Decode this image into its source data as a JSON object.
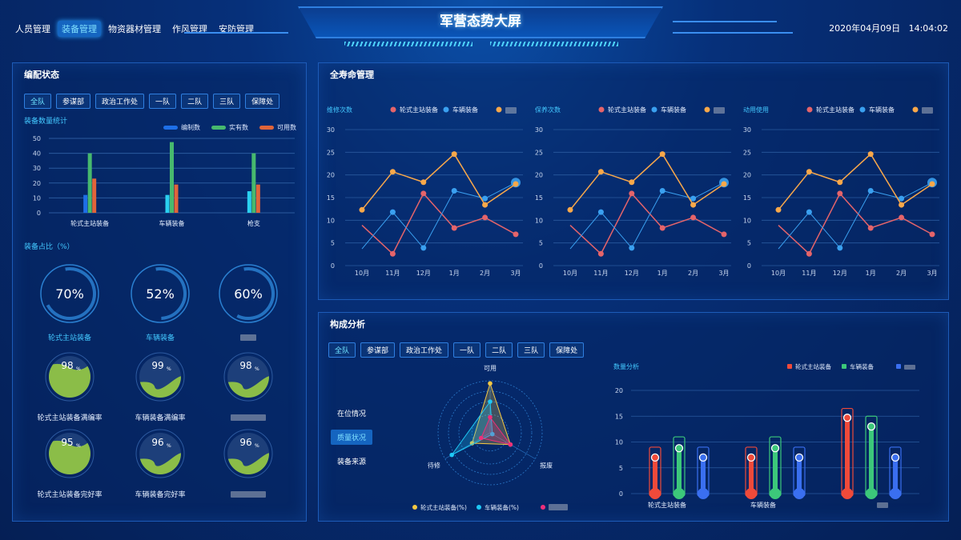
{
  "header": {
    "title": "军营态势大屏",
    "nav": [
      {
        "label": "人员管理"
      },
      {
        "label": "装备管理",
        "active": true
      },
      {
        "label": "物资器材管理"
      },
      {
        "label": "作风管理"
      },
      {
        "label": "安防管理"
      }
    ],
    "date": "2020年04月09日",
    "time": "14:04:02"
  },
  "left": {
    "title": "编配状态",
    "tabs": [
      "全队",
      "参谋部",
      "政治工作处",
      "一队",
      "二队",
      "三队",
      "保障处"
    ],
    "bar_title": "装备数量统计",
    "ratio_title": "装备占比（%）",
    "rings": [
      {
        "value": 70,
        "text": "70%",
        "label": "轮式主站装备"
      },
      {
        "value": 52,
        "text": "52%",
        "label": "车辆装备"
      },
      {
        "value": 60,
        "text": "60%",
        "label": ""
      }
    ],
    "gauges": [
      {
        "value": 98,
        "label": "轮式主站装备满编率"
      },
      {
        "value": 99,
        "label": "车辆装备满编率"
      },
      {
        "value": 98,
        "label": ""
      },
      {
        "value": 95,
        "label": "轮式主站装备完好率"
      },
      {
        "value": 96,
        "label": "车辆装备完好率"
      },
      {
        "value": 96,
        "label": ""
      }
    ],
    "gauge_unit": "%"
  },
  "lifecycle": {
    "title": "全寿命管理"
  },
  "composition": {
    "title": "构成分析",
    "tabs": [
      "全队",
      "参谋部",
      "政治工作处",
      "一队",
      "二队",
      "三队",
      "保障处"
    ],
    "menu": [
      "在位情况",
      "质量状况",
      "装备来源"
    ],
    "menu_active": 1
  },
  "colors": {
    "accent": "#43c8ff",
    "red": "#e5646a",
    "blue": "#3aa0f0",
    "orange": "#f9a84a",
    "green": "#47b96e",
    "bar_blue": "#1e6fe8",
    "bar_orange": "#e0653a",
    "gauge": "#8bbd48"
  },
  "chart_data": [
    {
      "type": "bar",
      "title": "装备数量统计",
      "categories": [
        "轮式主站装备",
        "车辆装备",
        "枪支"
      ],
      "ylim": [
        0,
        50
      ],
      "yticks": [
        0,
        10,
        20,
        30,
        40,
        50
      ],
      "legend": "top-right",
      "series": [
        {
          "name": "编制数",
          "values": [
            12,
            12,
            14.5
          ],
          "color": "#1e6fe8"
        },
        {
          "name": "实有数",
          "values": [
            40,
            47.5,
            40
          ],
          "color": "#47b96e"
        },
        {
          "name": "可用数",
          "values": [
            23,
            19,
            19
          ],
          "color": "#e0653a"
        }
      ]
    },
    {
      "type": "line",
      "title": "维修次数",
      "categories": [
        "10月",
        "11月",
        "12月",
        "1月",
        "2月",
        "3月"
      ],
      "ylim": [
        0,
        30
      ],
      "yticks": [
        0,
        5,
        10,
        15,
        20,
        25,
        30
      ],
      "legend": "top-right",
      "series": [
        {
          "name": "轮式主站装备",
          "values": [
            8.9,
            2.6,
            15.9,
            8.3,
            10.6,
            6.9
          ],
          "color": "#e5646a"
        },
        {
          "name": "车辆装备",
          "values": [
            3.7,
            11.8,
            3.9,
            16.5,
            14.8,
            18.3
          ],
          "color": "#3aa0f0"
        },
        {
          "name": "",
          "values": [
            12.3,
            20.7,
            18.4,
            24.6,
            13.4,
            18
          ],
          "color": "#f9a84a"
        }
      ]
    },
    {
      "type": "line",
      "title": "保养次数",
      "categories": [
        "10月",
        "11月",
        "12月",
        "1月",
        "2月",
        "3月"
      ],
      "ylim": [
        0,
        30
      ],
      "yticks": [
        0,
        5,
        10,
        15,
        20,
        25,
        30
      ],
      "legend": "top-right",
      "series": [
        {
          "name": "轮式主站装备",
          "values": [
            8.9,
            2.6,
            15.9,
            8.3,
            10.6,
            6.9
          ],
          "color": "#e5646a"
        },
        {
          "name": "车辆装备",
          "values": [
            3.7,
            11.8,
            3.9,
            16.5,
            14.8,
            18.3
          ],
          "color": "#3aa0f0"
        },
        {
          "name": "",
          "values": [
            12.3,
            20.7,
            18.4,
            24.6,
            13.4,
            18
          ],
          "color": "#f9a84a"
        }
      ]
    },
    {
      "type": "line",
      "title": "动用使用",
      "categories": [
        "10月",
        "11月",
        "12月",
        "1月",
        "2月",
        "3月"
      ],
      "ylim": [
        0,
        30
      ],
      "yticks": [
        0,
        5,
        10,
        15,
        20,
        25,
        30
      ],
      "legend": "top-right",
      "series": [
        {
          "name": "轮式主站装备",
          "values": [
            8.9,
            2.6,
            15.9,
            8.3,
            10.6,
            6.9
          ],
          "color": "#e5646a"
        },
        {
          "name": "车辆装备",
          "values": [
            3.7,
            11.8,
            3.9,
            16.5,
            14.8,
            18.3
          ],
          "color": "#3aa0f0"
        },
        {
          "name": "",
          "values": [
            12.3,
            20.7,
            18.4,
            24.6,
            13.4,
            18
          ],
          "color": "#f9a84a"
        }
      ]
    },
    {
      "type": "radar",
      "indicators": [
        "可用",
        "报废",
        "待修"
      ],
      "max": 100,
      "legend": "bottom",
      "series": [
        {
          "name": "轮式主站装备(%)",
          "values": [
            95,
            45,
            40
          ],
          "color": "#f5c842"
        },
        {
          "name": "车辆装备(%)",
          "values": [
            60,
            5,
            85
          ],
          "color": "#1ec8f5"
        },
        {
          "name": "",
          "values": [
            30,
            45,
            20
          ],
          "color": "#ee2f7a"
        }
      ]
    },
    {
      "type": "bar",
      "title": "数量分析",
      "categories": [
        "轮式主站装备",
        "车辆装备",
        ""
      ],
      "ylim": [
        0,
        20
      ],
      "yticks": [
        0,
        5,
        10,
        15,
        20
      ],
      "legend": "top-right",
      "series": [
        {
          "name": "轮式主站装备",
          "values": [
            7,
            7,
            14.7
          ],
          "max": [
            9,
            9,
            16.5
          ],
          "color": "#f04a3a"
        },
        {
          "name": "车辆装备",
          "values": [
            8.8,
            8.8,
            13
          ],
          "max": [
            11,
            11,
            15
          ],
          "color": "#3cc87a"
        },
        {
          "name": "",
          "values": [
            7,
            7,
            7
          ],
          "max": [
            9,
            9,
            9
          ],
          "color": "#3a6ff0"
        }
      ]
    }
  ]
}
